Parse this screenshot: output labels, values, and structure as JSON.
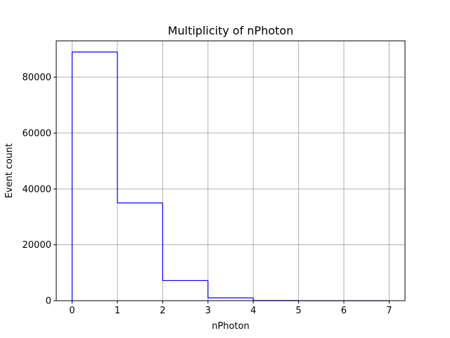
{
  "chart_data": {
    "type": "bar",
    "style": "step-histogram",
    "title": "Multiplicity of nPhoton",
    "xlabel": "nPhoton",
    "ylabel": "Event count",
    "bin_edges": [
      0,
      1,
      2,
      3,
      4,
      5,
      6,
      7
    ],
    "values": [
      89000,
      35000,
      7200,
      1000,
      60,
      5,
      0
    ],
    "xlim": [
      -0.35,
      7.35
    ],
    "ylim": [
      0,
      93000
    ],
    "x_ticks": [
      0,
      1,
      2,
      3,
      4,
      5,
      6,
      7
    ],
    "y_ticks": [
      0,
      20000,
      40000,
      60000,
      80000
    ],
    "grid": true,
    "line_color": "#0000ff",
    "grid_color": "#b0b0b0"
  }
}
